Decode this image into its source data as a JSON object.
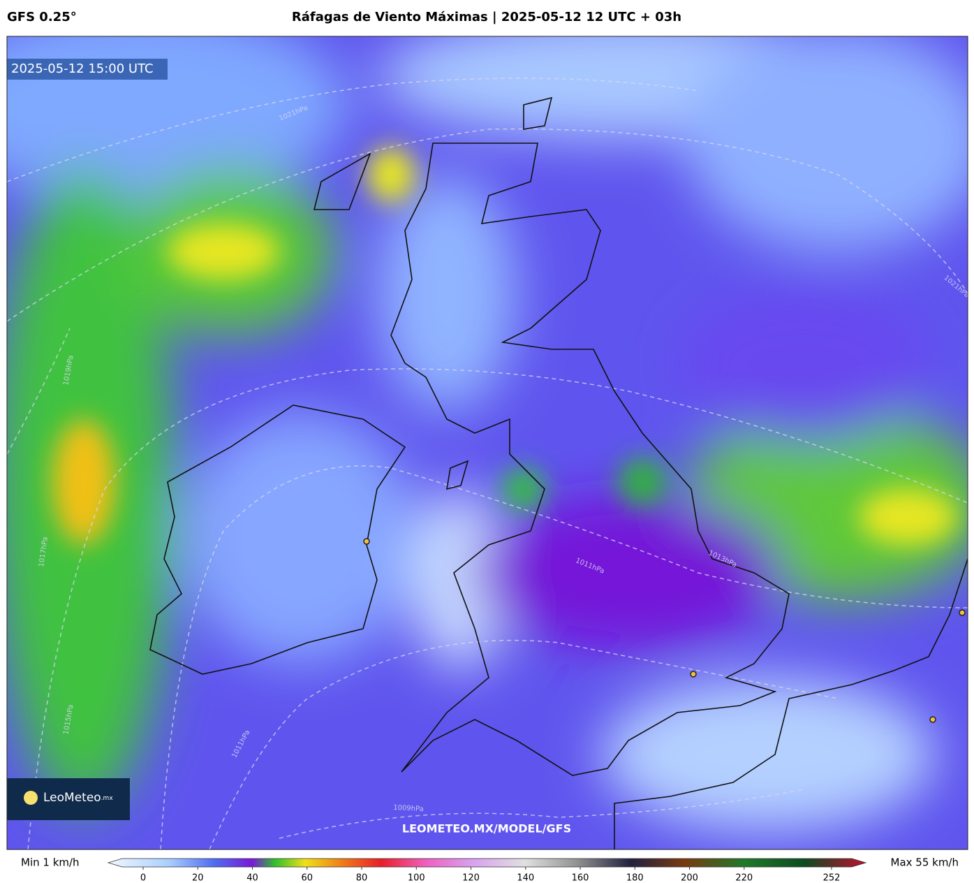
{
  "header": {
    "model": "GFS 0.25°",
    "title": "Ráfagas de Viento Máximas | 2025-05-12 12 UTC + 03h"
  },
  "map": {
    "valid_time": "2025-05-12 15:00 UTC",
    "watermark": "LEOMETEO.MX/MODEL/GFS",
    "logo": {
      "name": "LeoMeteo",
      "suffix": ".mx"
    },
    "isobar_labels": [
      "1021hPa",
      "1021hPa",
      "1019hPa",
      "1017hPa",
      "1015hPa",
      "1011hPa",
      "1013hPa",
      "1011hPa",
      "1009hPa"
    ]
  },
  "colorbar": {
    "min_label": "Min 1 km/h",
    "max_label": "Max 55 km/h",
    "ticks": [
      0,
      20,
      40,
      60,
      80,
      100,
      120,
      140,
      160,
      180,
      200,
      220,
      252
    ]
  }
}
